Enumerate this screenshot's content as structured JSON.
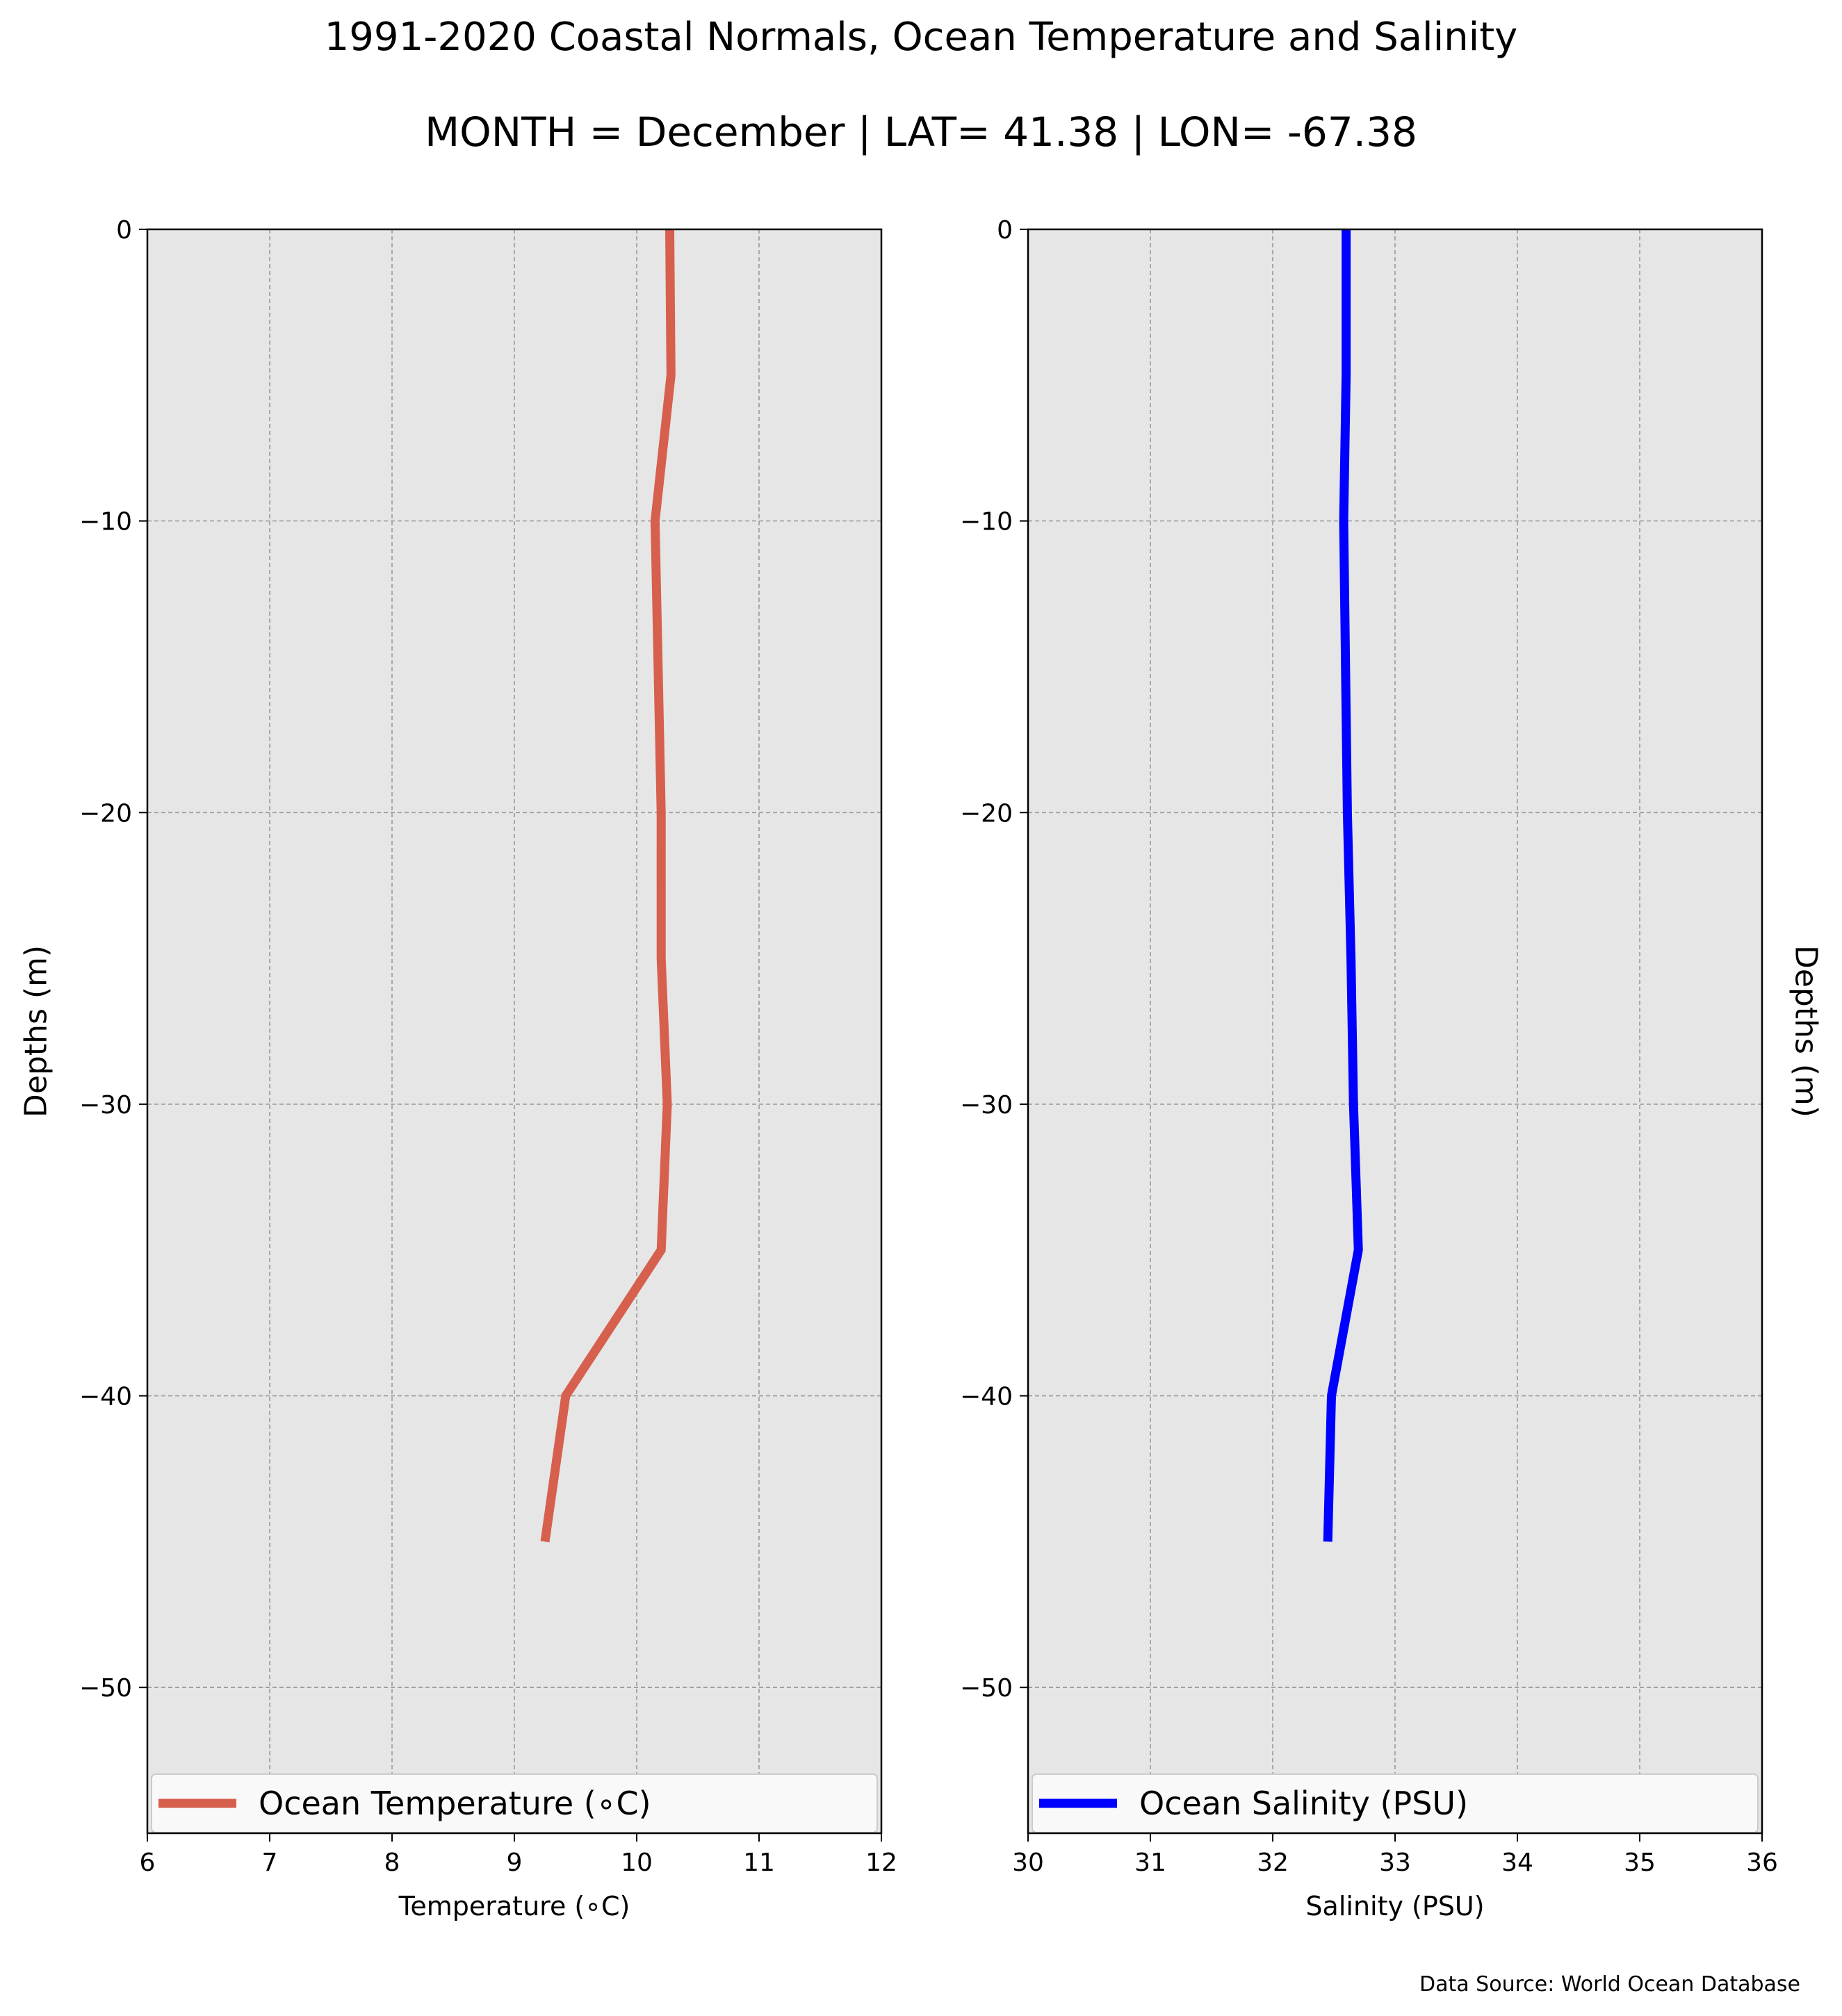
{
  "title": "1991-2020 Coastal Normals, Ocean Temperature and Salinity",
  "subtitle": "MONTH = December | LAT= 41.38 | LON= -67.38",
  "footer": "Data Source: World Ocean Database",
  "chart_data": [
    {
      "type": "line",
      "orientation": "vertical-profile",
      "xlabel": "Temperature ($^\\circ$C)",
      "xlabel_display": "Temperature (∘C)",
      "ylabel": "Depths (m)",
      "xlim": [
        6,
        12
      ],
      "ylim": [
        -55,
        0
      ],
      "xticks": [
        6,
        7,
        8,
        9,
        10,
        11,
        12
      ],
      "yticks": [
        0,
        -10,
        -20,
        -30,
        -40,
        -50
      ],
      "ytick_labels": [
        "0",
        "−10",
        "−20",
        "−30",
        "−40",
        "−50"
      ],
      "grid": true,
      "legend_placement": "lower center",
      "series": [
        {
          "name": "Ocean Temperature (∘C)",
          "color": "#d6604d",
          "points": [
            {
              "x": 10.27,
              "y": 0
            },
            {
              "x": 10.28,
              "y": -5
            },
            {
              "x": 10.15,
              "y": -10
            },
            {
              "x": 10.2,
              "y": -20
            },
            {
              "x": 10.2,
              "y": -25
            },
            {
              "x": 10.25,
              "y": -30
            },
            {
              "x": 10.2,
              "y": -35
            },
            {
              "x": 9.42,
              "y": -40
            },
            {
              "x": 9.25,
              "y": -45
            }
          ]
        }
      ]
    },
    {
      "type": "line",
      "orientation": "vertical-profile",
      "xlabel": "Salinity (PSU)",
      "ylabel": "Depths (m)",
      "xlim": [
        30,
        36
      ],
      "ylim": [
        -55,
        0
      ],
      "xticks": [
        30,
        31,
        32,
        33,
        34,
        35,
        36
      ],
      "yticks": [
        0,
        -10,
        -20,
        -30,
        -40,
        -50
      ],
      "ytick_labels": [
        "0",
        "−10",
        "−20",
        "−30",
        "−40",
        "−50"
      ],
      "ylabel_side": "right",
      "grid": true,
      "legend_placement": "lower center",
      "series": [
        {
          "name": "Ocean Salinity (PSU)",
          "color": "#0000ff",
          "points": [
            {
              "x": 32.6,
              "y": 0
            },
            {
              "x": 32.6,
              "y": -5
            },
            {
              "x": 32.58,
              "y": -10
            },
            {
              "x": 32.61,
              "y": -20
            },
            {
              "x": 32.64,
              "y": -25
            },
            {
              "x": 32.66,
              "y": -30
            },
            {
              "x": 32.7,
              "y": -35
            },
            {
              "x": 32.48,
              "y": -40
            },
            {
              "x": 32.45,
              "y": -45
            }
          ]
        }
      ]
    }
  ]
}
